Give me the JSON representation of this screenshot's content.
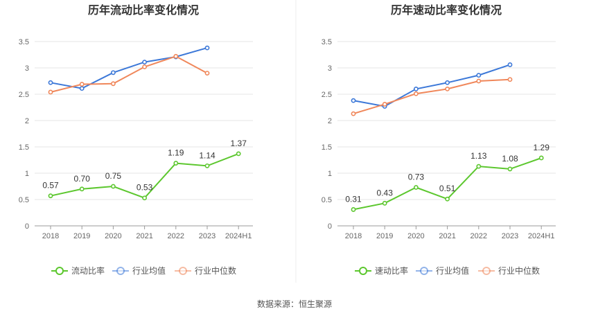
{
  "footer": {
    "source": "数据来源：恒生聚源"
  },
  "chart_data": [
    {
      "type": "line",
      "title": "历年流动比率变化情况",
      "categories": [
        "2018",
        "2019",
        "2020",
        "2021",
        "2022",
        "2023",
        "2024H1"
      ],
      "y_ticks": [
        "0",
        "0.5",
        "1",
        "1.5",
        "2",
        "2.5",
        "3",
        "3.5"
      ],
      "ylim": [
        0,
        3.5
      ],
      "grid": true,
      "legend": "bottom",
      "series": [
        {
          "name": "流动比率",
          "color": "#5cc72e",
          "labels": true,
          "values": [
            0.57,
            0.7,
            0.75,
            0.53,
            1.19,
            1.14,
            1.37
          ],
          "label_text": [
            "0.57",
            "0.70",
            "0.75",
            "0.53",
            "1.19",
            "1.14",
            "1.37"
          ]
        },
        {
          "name": "行业均值",
          "color": "#3c78d8",
          "values": [
            2.72,
            2.61,
            2.91,
            3.11,
            3.21,
            3.38,
            null
          ]
        },
        {
          "name": "行业中位数",
          "color": "#f0875a",
          "values": [
            2.54,
            2.69,
            2.7,
            3.02,
            3.22,
            2.9,
            null
          ]
        }
      ]
    },
    {
      "type": "line",
      "title": "历年速动比率变化情况",
      "categories": [
        "2018",
        "2019",
        "2020",
        "2021",
        "2022",
        "2023",
        "2024H1"
      ],
      "y_ticks": [
        "0",
        "0.5",
        "1",
        "1.5",
        "2",
        "2.5",
        "3",
        "3.5"
      ],
      "ylim": [
        0,
        3.5
      ],
      "grid": true,
      "legend": "bottom",
      "series": [
        {
          "name": "速动比率",
          "color": "#5cc72e",
          "labels": true,
          "values": [
            0.31,
            0.43,
            0.73,
            0.51,
            1.13,
            1.08,
            1.29
          ],
          "label_text": [
            "0.31",
            "0.43",
            "0.73",
            "0.51",
            "1.13",
            "1.08",
            "1.29"
          ]
        },
        {
          "name": "行业均值",
          "color": "#3c78d8",
          "values": [
            2.38,
            2.27,
            2.6,
            2.72,
            2.86,
            3.06,
            null
          ]
        },
        {
          "name": "行业中位数",
          "color": "#f0875a",
          "values": [
            2.13,
            2.31,
            2.51,
            2.6,
            2.75,
            2.78,
            null
          ]
        }
      ]
    }
  ]
}
